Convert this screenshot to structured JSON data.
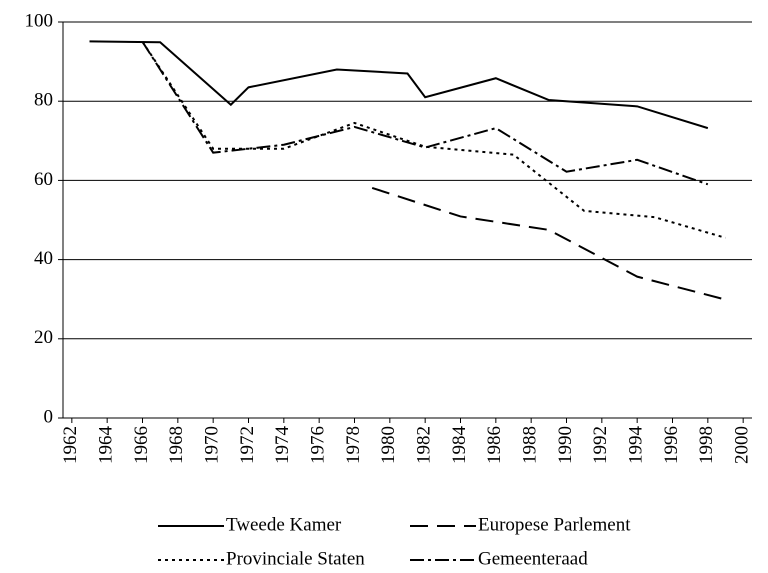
{
  "chart_data": {
    "type": "line",
    "xlim": [
      1961.5,
      2000.5
    ],
    "xticks": [
      1962,
      1964,
      1966,
      1968,
      1970,
      1972,
      1974,
      1976,
      1978,
      1980,
      1982,
      1984,
      1986,
      1988,
      1990,
      1992,
      1994,
      1996,
      1998,
      2000
    ],
    "ylim": [
      0,
      100
    ],
    "yticks": [
      0,
      20,
      40,
      60,
      80,
      100
    ],
    "grid": true,
    "legend": "bottom",
    "series": [
      {
        "name": "Tweede Kamer",
        "color": "#000000",
        "dash": "solid",
        "x": [
          1963,
          1967,
          1971,
          1972,
          1977,
          1981,
          1982,
          1986,
          1989,
          1994,
          1998
        ],
        "values": [
          95.1,
          94.9,
          79.1,
          83.5,
          88.0,
          87.0,
          81.0,
          85.8,
          80.3,
          78.7,
          73.2
        ]
      },
      {
        "name": "Europese Parlement",
        "color": "#000000",
        "dash": "dashed",
        "x": [
          1979,
          1984,
          1989,
          1994,
          1999
        ],
        "values": [
          58.1,
          50.9,
          47.5,
          35.7,
          29.9
        ]
      },
      {
        "name": "Provinciale Staten",
        "color": "#000000",
        "dash": "dotted",
        "x": [
          1966,
          1970,
          1974,
          1978,
          1982,
          1987,
          1991,
          1995,
          1999
        ],
        "values": [
          95.0,
          68.0,
          68.0,
          74.5,
          68.5,
          66.5,
          52.3,
          50.7,
          45.5
        ]
      },
      {
        "name": "Gemeenteraad",
        "color": "#000000",
        "dash": "dashdot",
        "x": [
          1966,
          1970,
          1974,
          1978,
          1982,
          1986,
          1990,
          1994,
          1998
        ],
        "values": [
          95.0,
          67.0,
          69.0,
          73.5,
          68.3,
          73.2,
          62.2,
          65.2,
          59.0
        ]
      }
    ]
  }
}
